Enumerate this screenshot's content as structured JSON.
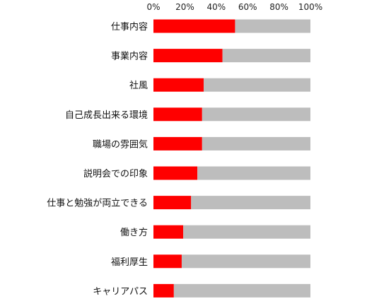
{
  "chart_data": {
    "type": "bar",
    "orientation": "horizontal",
    "stacked": true,
    "title": "",
    "xlabel": "",
    "ylabel": "",
    "xlim": [
      0,
      100
    ],
    "x_ticks": [
      "0%",
      "20%",
      "40%",
      "60%",
      "80%",
      "100%"
    ],
    "x_axis_position": "top",
    "grid": false,
    "categories": [
      "仕事内容",
      "事業内容",
      "社風",
      "自己成長出来る環境",
      "職場の雰囲気",
      "説明会での印象",
      "仕事と勉強が両立できる",
      "働き方",
      "福利厚生",
      "キャリアパス"
    ],
    "series": [
      {
        "color": "#ff0000",
        "values": [
          52,
          44,
          32,
          31,
          31,
          28,
          24,
          19,
          18,
          13
        ]
      },
      {
        "color": "#bdbdbd",
        "values": [
          48,
          56,
          68,
          69,
          69,
          72,
          76,
          81,
          82,
          87
        ]
      }
    ]
  }
}
